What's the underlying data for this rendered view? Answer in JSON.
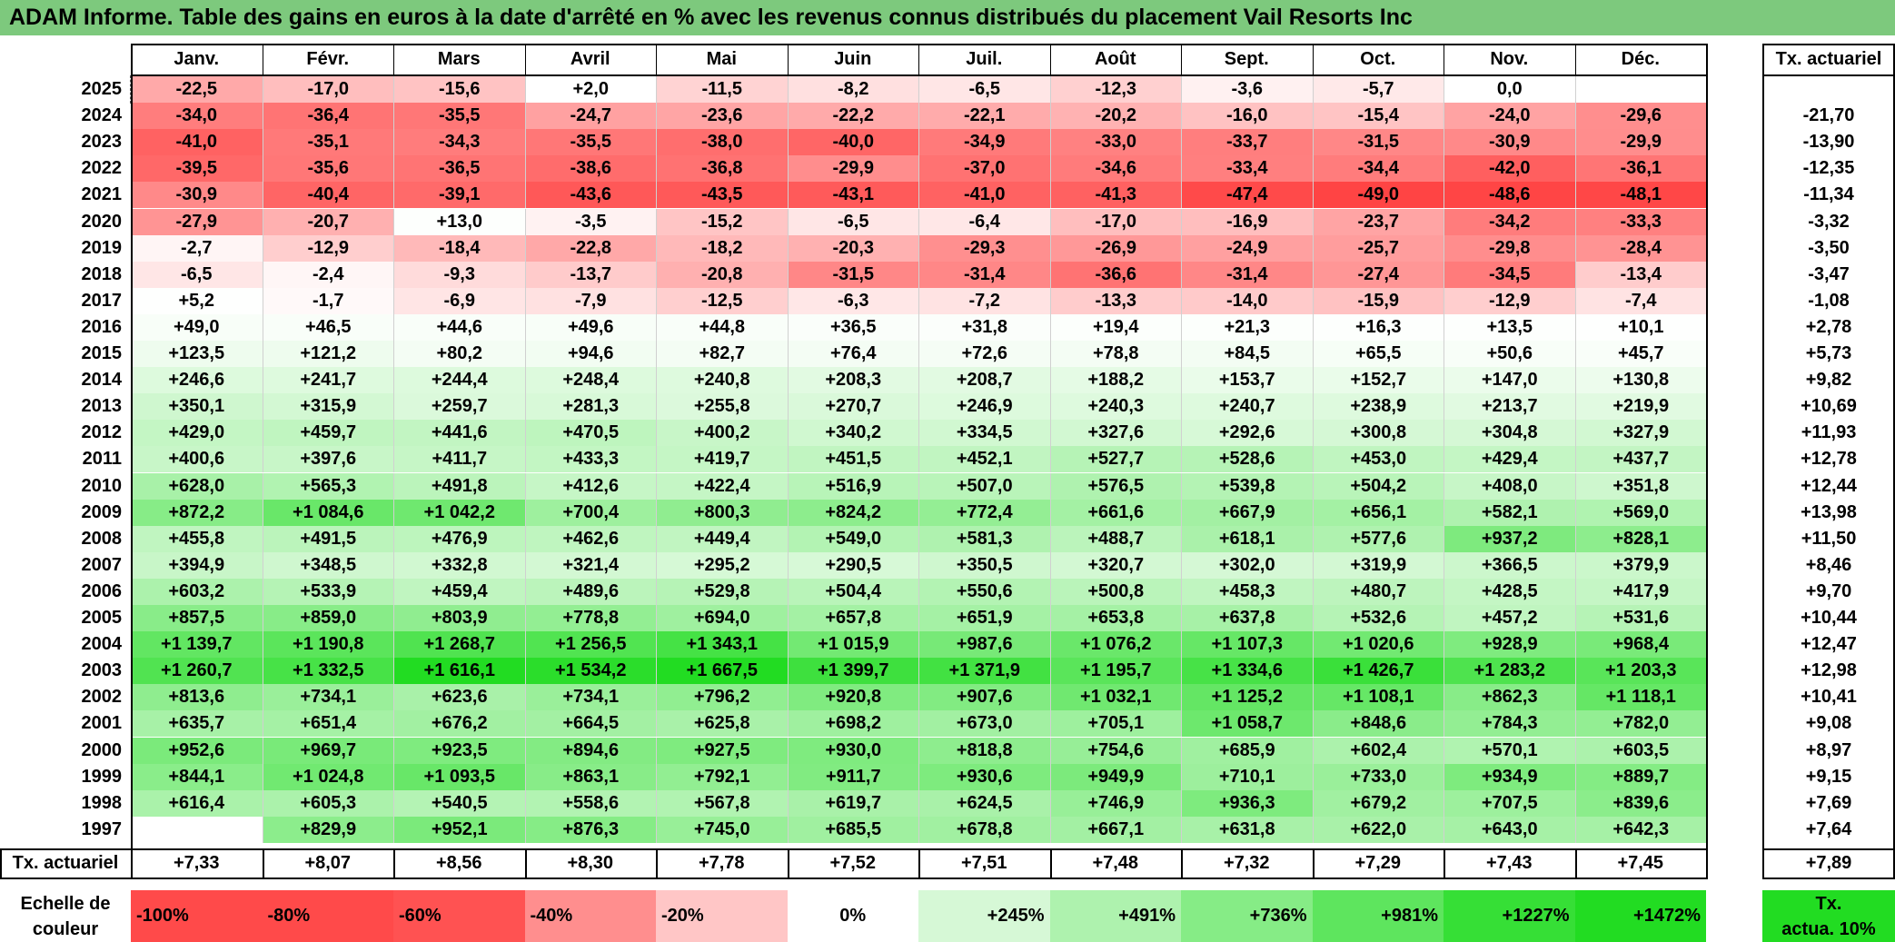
{
  "title": "ADAM Informe. Table des gains en euros à la date d'arrêté en % avec les revenus connus distribués du placement Vail Resorts Inc",
  "months": [
    "Janv.",
    "Févr.",
    "Mars",
    "Avril",
    "Mai",
    "Juin",
    "Juil.",
    "Août",
    "Sept.",
    "Oct.",
    "Nov.",
    "Déc."
  ],
  "tx_header": "Tx. actuariel",
  "rows": [
    {
      "year": "2025",
      "values": [
        "-22,5",
        "-17,0",
        "-15,6",
        "+2,0",
        "-11,5",
        "-8,2",
        "-6,5",
        "-12,3",
        "-3,6",
        "-5,7",
        "0,0",
        ""
      ],
      "tx": ""
    },
    {
      "year": "2024",
      "values": [
        "-34,0",
        "-36,4",
        "-35,5",
        "-24,7",
        "-23,6",
        "-22,2",
        "-22,1",
        "-20,2",
        "-16,0",
        "-15,4",
        "-24,0",
        "-29,6"
      ],
      "tx": "-21,70"
    },
    {
      "year": "2023",
      "values": [
        "-41,0",
        "-35,1",
        "-34,3",
        "-35,5",
        "-38,0",
        "-40,0",
        "-34,9",
        "-33,0",
        "-33,7",
        "-31,5",
        "-30,9",
        "-29,9"
      ],
      "tx": "-13,90"
    },
    {
      "year": "2022",
      "values": [
        "-39,5",
        "-35,6",
        "-36,5",
        "-38,6",
        "-36,8",
        "-29,9",
        "-37,0",
        "-34,6",
        "-33,4",
        "-34,4",
        "-42,0",
        "-36,1"
      ],
      "tx": "-12,35"
    },
    {
      "year": "2021",
      "values": [
        "-30,9",
        "-40,4",
        "-39,1",
        "-43,6",
        "-43,5",
        "-43,1",
        "-41,0",
        "-41,3",
        "-47,4",
        "-49,0",
        "-48,6",
        "-48,1"
      ],
      "tx": "-11,34"
    },
    {
      "year": "2020",
      "values": [
        "-27,9",
        "-20,7",
        "+13,0",
        "-3,5",
        "-15,2",
        "-6,5",
        "-6,4",
        "-17,0",
        "-16,9",
        "-23,7",
        "-34,2",
        "-33,3"
      ],
      "tx": "-3,32"
    },
    {
      "year": "2019",
      "values": [
        "-2,7",
        "-12,9",
        "-18,4",
        "-22,8",
        "-18,2",
        "-20,3",
        "-29,3",
        "-26,9",
        "-24,9",
        "-25,7",
        "-29,8",
        "-28,4"
      ],
      "tx": "-3,50"
    },
    {
      "year": "2018",
      "values": [
        "-6,5",
        "-2,4",
        "-9,3",
        "-13,7",
        "-20,8",
        "-31,5",
        "-31,4",
        "-36,6",
        "-31,4",
        "-27,4",
        "-34,5",
        "-13,4"
      ],
      "tx": "-3,47"
    },
    {
      "year": "2017",
      "values": [
        "+5,2",
        "-1,7",
        "-6,9",
        "-7,9",
        "-12,5",
        "-6,3",
        "-7,2",
        "-13,3",
        "-14,0",
        "-15,9",
        "-12,9",
        "-7,4"
      ],
      "tx": "-1,08"
    },
    {
      "year": "2016",
      "values": [
        "+49,0",
        "+46,5",
        "+44,6",
        "+49,6",
        "+44,8",
        "+36,5",
        "+31,8",
        "+19,4",
        "+21,3",
        "+16,3",
        "+13,5",
        "+10,1"
      ],
      "tx": "+2,78"
    },
    {
      "year": "2015",
      "values": [
        "+123,5",
        "+121,2",
        "+80,2",
        "+94,6",
        "+82,7",
        "+76,4",
        "+72,6",
        "+78,8",
        "+84,5",
        "+65,5",
        "+50,6",
        "+45,7"
      ],
      "tx": "+5,73"
    },
    {
      "year": "2014",
      "values": [
        "+246,6",
        "+241,7",
        "+244,4",
        "+248,4",
        "+240,8",
        "+208,3",
        "+208,7",
        "+188,2",
        "+153,7",
        "+152,7",
        "+147,0",
        "+130,8"
      ],
      "tx": "+9,82"
    },
    {
      "year": "2013",
      "values": [
        "+350,1",
        "+315,9",
        "+259,7",
        "+281,3",
        "+255,8",
        "+270,7",
        "+246,9",
        "+240,3",
        "+240,7",
        "+238,9",
        "+213,7",
        "+219,9"
      ],
      "tx": "+10,69"
    },
    {
      "year": "2012",
      "values": [
        "+429,0",
        "+459,7",
        "+441,6",
        "+470,5",
        "+400,2",
        "+340,2",
        "+334,5",
        "+327,6",
        "+292,6",
        "+300,8",
        "+304,8",
        "+327,9"
      ],
      "tx": "+11,93"
    },
    {
      "year": "2011",
      "values": [
        "+400,6",
        "+397,6",
        "+411,7",
        "+433,3",
        "+419,7",
        "+451,5",
        "+452,1",
        "+527,7",
        "+528,6",
        "+453,0",
        "+429,4",
        "+437,7"
      ],
      "tx": "+12,78"
    },
    {
      "year": "2010",
      "values": [
        "+628,0",
        "+565,3",
        "+491,8",
        "+412,6",
        "+422,4",
        "+516,9",
        "+507,0",
        "+576,5",
        "+539,8",
        "+504,2",
        "+408,0",
        "+351,8"
      ],
      "tx": "+12,44"
    },
    {
      "year": "2009",
      "values": [
        "+872,2",
        "+1 084,6",
        "+1 042,2",
        "+700,4",
        "+800,3",
        "+824,2",
        "+772,4",
        "+661,6",
        "+667,9",
        "+656,1",
        "+582,1",
        "+569,0"
      ],
      "tx": "+13,98"
    },
    {
      "year": "2008",
      "values": [
        "+455,8",
        "+491,5",
        "+476,9",
        "+462,6",
        "+449,4",
        "+549,0",
        "+581,3",
        "+488,7",
        "+618,1",
        "+577,6",
        "+937,2",
        "+828,1"
      ],
      "tx": "+11,50"
    },
    {
      "year": "2007",
      "values": [
        "+394,9",
        "+348,5",
        "+332,8",
        "+321,4",
        "+295,2",
        "+290,5",
        "+350,5",
        "+320,7",
        "+302,0",
        "+319,9",
        "+366,5",
        "+379,9"
      ],
      "tx": "+8,46"
    },
    {
      "year": "2006",
      "values": [
        "+603,2",
        "+533,9",
        "+459,4",
        "+489,6",
        "+529,8",
        "+504,4",
        "+550,6",
        "+500,8",
        "+458,3",
        "+480,7",
        "+428,5",
        "+417,9"
      ],
      "tx": "+9,70"
    },
    {
      "year": "2005",
      "values": [
        "+857,5",
        "+859,0",
        "+803,9",
        "+778,8",
        "+694,0",
        "+657,8",
        "+651,9",
        "+653,8",
        "+637,8",
        "+532,6",
        "+457,2",
        "+531,6"
      ],
      "tx": "+10,44"
    },
    {
      "year": "2004",
      "values": [
        "+1 139,7",
        "+1 190,8",
        "+1 268,7",
        "+1 256,5",
        "+1 343,1",
        "+1 015,9",
        "+987,6",
        "+1 076,2",
        "+1 107,3",
        "+1 020,6",
        "+928,9",
        "+968,4"
      ],
      "tx": "+12,47"
    },
    {
      "year": "2003",
      "values": [
        "+1 260,7",
        "+1 332,5",
        "+1 616,1",
        "+1 534,2",
        "+1 667,5",
        "+1 399,7",
        "+1 371,9",
        "+1 195,7",
        "+1 334,6",
        "+1 426,7",
        "+1 283,2",
        "+1 203,3"
      ],
      "tx": "+12,98"
    },
    {
      "year": "2002",
      "values": [
        "+813,6",
        "+734,1",
        "+623,6",
        "+734,1",
        "+796,2",
        "+920,8",
        "+907,6",
        "+1 032,1",
        "+1 125,2",
        "+1 108,1",
        "+862,3",
        "+1 118,1"
      ],
      "tx": "+10,41"
    },
    {
      "year": "2001",
      "values": [
        "+635,7",
        "+651,4",
        "+676,2",
        "+664,5",
        "+625,8",
        "+698,2",
        "+673,0",
        "+705,1",
        "+1 058,7",
        "+848,6",
        "+784,3",
        "+782,0"
      ],
      "tx": "+9,08"
    },
    {
      "year": "2000",
      "values": [
        "+952,6",
        "+969,7",
        "+923,5",
        "+894,6",
        "+927,5",
        "+930,0",
        "+818,8",
        "+754,6",
        "+685,9",
        "+602,4",
        "+570,1",
        "+603,5"
      ],
      "tx": "+8,97"
    },
    {
      "year": "1999",
      "values": [
        "+844,1",
        "+1 024,8",
        "+1 093,5",
        "+863,1",
        "+792,1",
        "+911,7",
        "+930,6",
        "+949,9",
        "+710,1",
        "+733,0",
        "+934,9",
        "+889,7"
      ],
      "tx": "+9,15"
    },
    {
      "year": "1998",
      "values": [
        "+616,4",
        "+605,3",
        "+540,5",
        "+558,6",
        "+567,8",
        "+619,7",
        "+624,5",
        "+746,9",
        "+936,3",
        "+679,2",
        "+707,5",
        "+839,6"
      ],
      "tx": "+7,69"
    },
    {
      "year": "1997",
      "values": [
        "",
        "+829,9",
        "+952,1",
        "+876,3",
        "+745,0",
        "+685,5",
        "+678,8",
        "+667,1",
        "+631,8",
        "+622,0",
        "+643,0",
        "+642,3"
      ],
      "tx": "+7,64"
    }
  ],
  "footer": {
    "label": "Tx. actuariel",
    "values": [
      "+7,33",
      "+8,07",
      "+8,56",
      "+8,30",
      "+7,78",
      "+7,52",
      "+7,51",
      "+7,48",
      "+7,32",
      "+7,29",
      "+7,43",
      "+7,45"
    ],
    "tx": "+7,89"
  },
  "legend": {
    "label_line1": "Echelle de",
    "label_line2": "couleur",
    "items": [
      {
        "text": "-100%",
        "color": "#ff4a4a",
        "align": "left"
      },
      {
        "text": "-80%",
        "color": "#ff4a4a",
        "align": "left"
      },
      {
        "text": "-60%",
        "color": "#ff5252",
        "align": "left"
      },
      {
        "text": "-40%",
        "color": "#ff8e8e",
        "align": "left"
      },
      {
        "text": "-20%",
        "color": "#ffc6c6",
        "align": "left"
      },
      {
        "text": "0%",
        "color": "#ffffff",
        "align": "center"
      },
      {
        "text": "+245%",
        "color": "#d6f8d6",
        "align": "right"
      },
      {
        "text": "+491%",
        "color": "#aef2ae",
        "align": "right"
      },
      {
        "text": "+736%",
        "color": "#86ec86",
        "align": "right"
      },
      {
        "text": "+981%",
        "color": "#5ee55e",
        "align": "right"
      },
      {
        "text": "+1227%",
        "color": "#36df36",
        "align": "right"
      },
      {
        "text": "+1472%",
        "color": "#22dc22",
        "align": "right"
      }
    ],
    "target_line1": "Tx.",
    "target_line2": "actua. 10%",
    "target_color": "#22dc22"
  },
  "colors": {
    "title_bg": "#7dc97d",
    "neg_full": "#ff4040",
    "pos_full": "#22dc22",
    "neutral": "#ffffff"
  }
}
